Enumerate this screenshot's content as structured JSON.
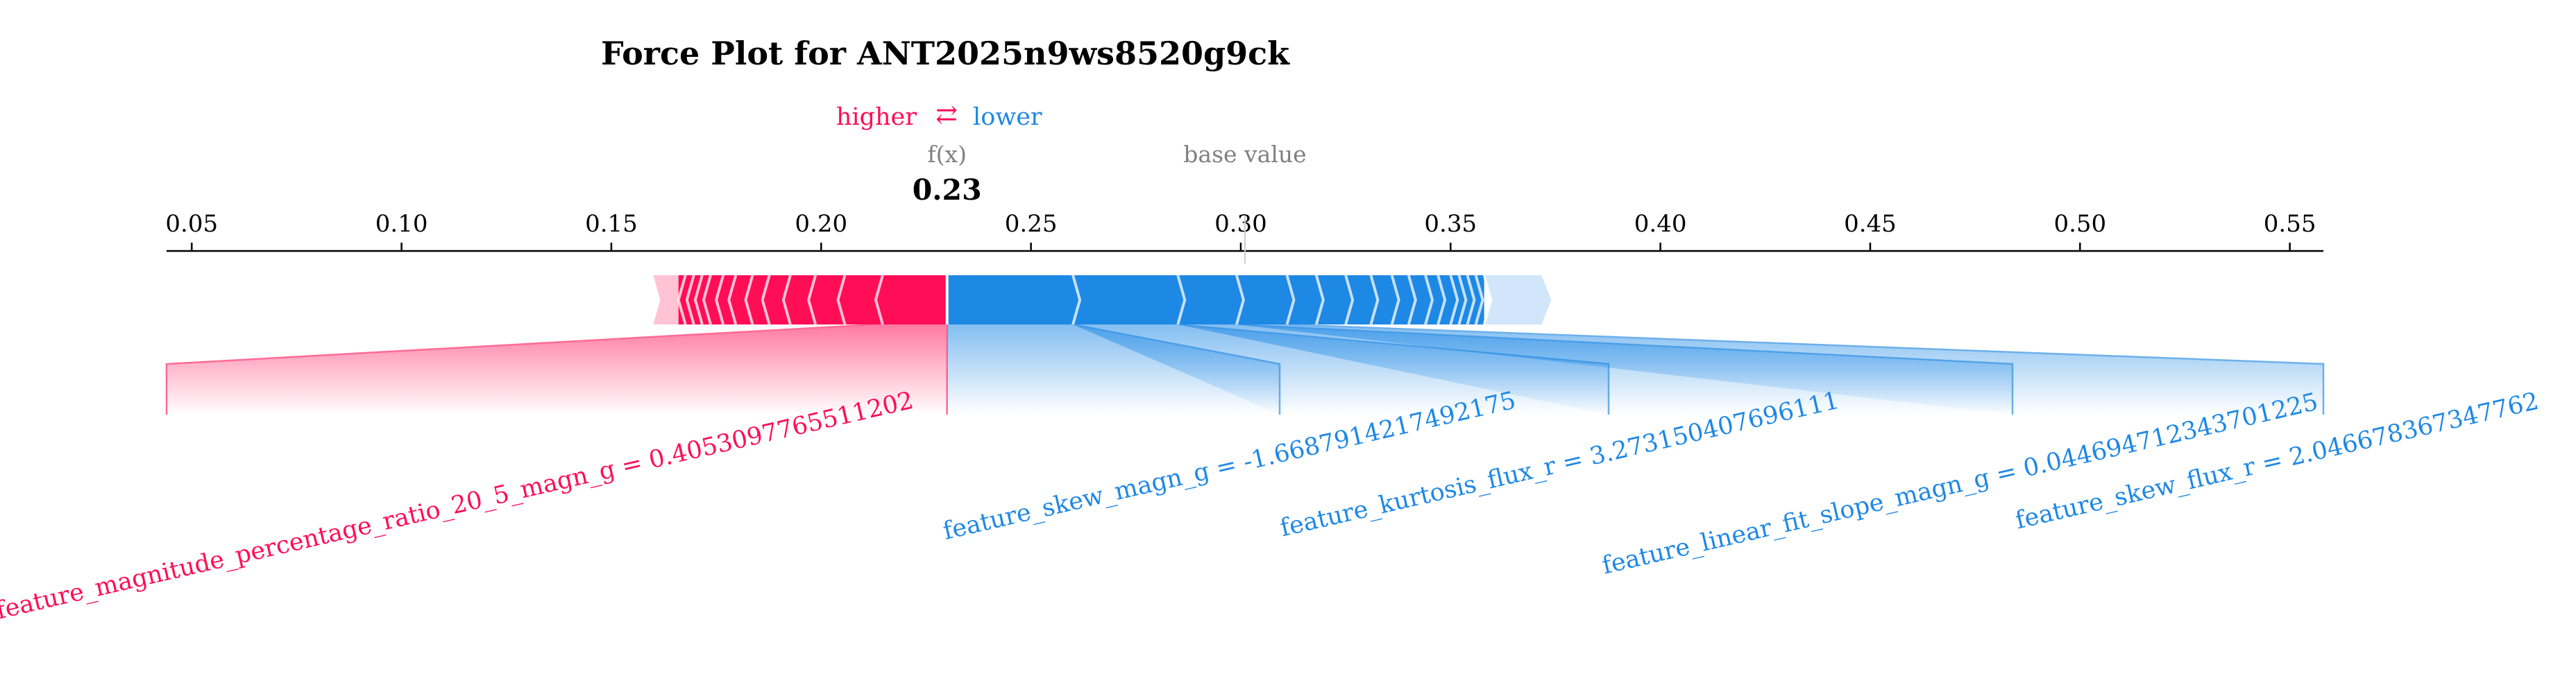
{
  "chart_data": {
    "type": "force",
    "title": "Force Plot for ANT2025n9ws8520g9ck",
    "legend": {
      "higher": "higher",
      "arrow": "⇄",
      "lower": "lower",
      "placement": "top-left"
    },
    "fx_label": "f(x)",
    "fx_value_text": "0.23",
    "fx_value": 0.23,
    "base_label": "base value",
    "base_value": 0.301,
    "xlim": [
      0.044,
      0.558
    ],
    "ticks": [
      0.05,
      0.1,
      0.15,
      0.2,
      0.25,
      0.3,
      0.35,
      0.4,
      0.45,
      0.5,
      0.55
    ],
    "tick_labels": [
      "0.05",
      "0.10",
      "0.15",
      "0.20",
      "0.25",
      "0.30",
      "0.35",
      "0.40",
      "0.45",
      "0.50",
      "0.55"
    ],
    "positive_range": [
      0.16,
      0.23
    ],
    "negative_range": [
      0.23,
      0.374
    ],
    "positive_boundaries": [
      0.213,
      0.204,
      0.197,
      0.191,
      0.186,
      0.182,
      0.178,
      0.175,
      0.172,
      0.17,
      0.168,
      0.166
    ],
    "negative_boundaries": [
      0.26,
      0.285,
      0.299,
      0.311,
      0.318,
      0.325,
      0.331,
      0.336,
      0.34,
      0.344,
      0.347,
      0.35,
      0.352,
      0.354,
      0.356,
      0.358
    ],
    "positive_features": [
      {
        "label": "feature_magnitude_percentage_ratio_20_5_magn_g = 0.4053097765511202",
        "start": 0.213,
        "end": 0.23
      }
    ],
    "negative_features": [
      {
        "label": "feature_skew_magn_g = -1.6687914217492175",
        "start": 0.23,
        "end": 0.26
      },
      {
        "label": "feature_kurtosis_flux_r = 3.273150407696111",
        "start": 0.26,
        "end": 0.285
      },
      {
        "label": "feature_linear_fit_slope_magn_g = 0.044694712343701225",
        "start": 0.285,
        "end": 0.299
      },
      {
        "label": "feature_skew_flux_r = 2.046678367347762",
        "start": 0.299,
        "end": 0.311
      }
    ],
    "colors": {
      "positive": "#ff0d57",
      "negative": "#1e88e5",
      "positive_light": "#ffc3d5",
      "negative_light": "#d1e6fa",
      "positive_line": "#ff6b95",
      "negative_line": "#6db0ec",
      "axis": "#000000",
      "label_gray": "#808080"
    }
  }
}
